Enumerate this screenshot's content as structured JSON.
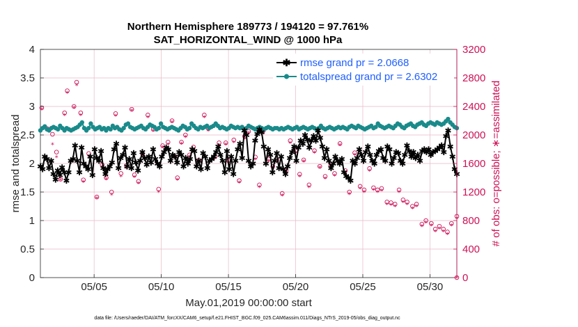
{
  "chart_data": {
    "type": "line",
    "title": "Northern Hemisphere 189773 / 194120 = 97.761%",
    "subtitle": "SAT_HORIZONTAL_WIND @ 1000 hPa",
    "xlabel": "May.01,2019 00:00:00 start",
    "ylabel_left": "rmse and totalspread",
    "ylabel_right": "# of obs: o=possible; ∗=assimilated",
    "footnote": "data file: /Users/raeder/DAI/ATM_forcXX/CAM6_setup/f.e21.FHIST_BGC.f09_025.CAM6assim.011/Diags_NTrS_2019-05/obs_diag_output.nc",
    "x_ticks": [
      "05/05",
      "05/10",
      "05/15",
      "05/20",
      "05/25",
      "05/30"
    ],
    "x_tick_values": [
      5,
      10,
      15,
      20,
      25,
      30
    ],
    "xlim": [
      1,
      32
    ],
    "ylim_left": [
      0,
      4
    ],
    "y_ticks_left": [
      "0",
      "0.5",
      "1",
      "1.5",
      "2",
      "2.5",
      "3",
      "3.5",
      "4"
    ],
    "ylim_right": [
      0,
      3200
    ],
    "y_ticks_right": [
      "0",
      "400",
      "800",
      "1200",
      "1600",
      "2000",
      "2400",
      "2800",
      "3200"
    ],
    "grid": true,
    "legend_position": "top-right",
    "colors": {
      "rmse": "#000000",
      "totalspread": "#1a8a8a",
      "obs": "#cc1155",
      "legend_text": "#1f5fff",
      "grid": "#e6b8c6"
    },
    "series": [
      {
        "name": "rmse grand pr = 2.0668",
        "axis": "left",
        "values": [
          1.95,
          1.9,
          2.12,
          2.08,
          1.92,
          2.05,
          1.82,
          1.72,
          1.88,
          1.8,
          1.93,
          1.85,
          1.7,
          1.85,
          2.05,
          2.08,
          2.32,
          2.05,
          1.85,
          2.28,
          2.0,
          1.95,
          1.9,
          2.12,
          1.8,
          2.25,
          2.1,
          2.05,
          2.22,
          1.92,
          1.82,
          1.9,
          1.95,
          2.02,
          2.25,
          2.35,
          1.92,
          2.1,
          2.15,
          2.28,
          1.95,
          2.08,
          1.92,
          2.18,
          2.02,
          1.88,
          2.05,
          2.2,
          2.1,
          1.98,
          2.12,
          2.02,
          2.25,
          2.08,
          2.0,
          1.95,
          2.12,
          2.2,
          2.28,
          2.25,
          2.05,
          2.15,
          2.12,
          2.02,
          2.2,
          2.15,
          1.95,
          2.1,
          2.0,
          2.08,
          2.25,
          2.22,
          1.95,
          2.05,
          1.9,
          2.18,
          2.12,
          1.92,
          2.05,
          2.08,
          2.12,
          2.2,
          2.3,
          2.15,
          2.05,
          1.85,
          2.22,
          1.9,
          2.12,
          1.82,
          2.05,
          2.25,
          2.35,
          2.1,
          2.58,
          2.5,
          2.05,
          1.95,
          2.0,
          2.4,
          2.52,
          2.6,
          2.55,
          2.3,
          2.0,
          2.25,
          2.15,
          1.85,
          2.05,
          2.18,
          1.92,
          2.12,
          1.9,
          1.82,
          1.95,
          2.1,
          2.2,
          2.3,
          2.05,
          2.28,
          2.4,
          2.35,
          2.5,
          2.42,
          2.28,
          2.4,
          2.48,
          2.4,
          2.58,
          2.45,
          2.3,
          2.1,
          2.25,
          2.05,
          1.92,
          2.0,
          2.12,
          2.05,
          2.0,
          2.08,
          1.85,
          1.78,
          1.75,
          1.7,
          2.05,
          2.0,
          2.1,
          2.25,
          2.15,
          2.05,
          2.2,
          2.3,
          2.15,
          2.05,
          2.0,
          2.15,
          2.22,
          2.25,
          2.1,
          2.05,
          2.3,
          2.25,
          2.0,
          2.1,
          2.2,
          2.18,
          2.05,
          2.0,
          2.15,
          2.32,
          2.22,
          2.12,
          2.2,
          2.1,
          2.15,
          2.05,
          2.22,
          2.25,
          2.2,
          2.25,
          2.15,
          2.2,
          2.22,
          2.25,
          2.28,
          2.32,
          2.2,
          2.48,
          2.58,
          2.3,
          2.12,
          1.9,
          1.82
        ]
      },
      {
        "name": "totalspread grand pr = 2.6302",
        "axis": "left",
        "values": [
          2.58,
          2.62,
          2.65,
          2.6,
          2.58,
          2.62,
          2.64,
          2.62,
          2.6,
          2.66,
          2.62,
          2.58,
          2.62,
          2.6,
          2.58,
          2.6,
          2.62,
          2.64,
          2.68,
          2.72,
          2.62,
          2.58,
          2.62,
          2.7,
          2.64,
          2.6,
          2.62,
          2.64,
          2.6,
          2.62,
          2.58,
          2.62,
          2.6,
          2.66,
          2.62,
          2.64,
          2.6,
          2.58,
          2.62,
          2.68,
          2.7,
          2.64,
          2.62,
          2.6,
          2.62,
          2.64,
          2.66,
          2.62,
          2.6,
          2.64,
          2.68,
          2.66,
          2.64,
          2.6,
          2.62,
          2.7,
          2.64,
          2.62,
          2.6,
          2.62,
          2.64,
          2.62,
          2.6,
          2.58,
          2.62,
          2.66,
          2.64,
          2.6,
          2.62,
          2.7,
          2.66,
          2.62,
          2.6,
          2.64,
          2.62,
          2.64,
          2.66,
          2.62,
          2.64,
          2.66,
          2.7,
          2.66,
          2.62,
          2.64,
          2.62,
          2.6,
          2.62,
          2.66,
          2.64,
          2.62,
          2.64,
          2.62,
          2.64,
          2.6,
          2.62,
          2.66,
          2.64,
          2.62,
          2.6,
          2.62,
          2.64,
          2.62,
          2.6,
          2.62,
          2.64,
          2.62,
          2.6,
          2.62,
          2.62,
          2.6,
          2.62,
          2.6,
          2.62,
          2.64,
          2.62,
          2.6,
          2.62,
          2.64,
          2.6,
          2.62,
          2.64,
          2.62,
          2.6,
          2.62,
          2.64,
          2.62,
          2.6,
          2.62,
          2.66,
          2.62,
          2.6,
          2.62,
          2.64,
          2.62,
          2.6,
          2.62,
          2.64,
          2.62,
          2.64,
          2.62,
          2.6,
          2.64,
          2.66,
          2.64,
          2.62,
          2.66,
          2.64,
          2.62,
          2.6,
          2.62,
          2.64,
          2.66,
          2.62,
          2.64,
          2.7,
          2.66,
          2.64,
          2.62,
          2.64,
          2.66,
          2.64,
          2.62,
          2.66,
          2.7,
          2.68,
          2.64,
          2.62,
          2.66,
          2.68,
          2.7,
          2.66,
          2.64,
          2.68,
          2.7,
          2.72,
          2.68,
          2.66,
          2.7,
          2.72,
          2.7,
          2.68,
          2.72,
          2.7,
          2.68,
          2.7,
          2.74,
          2.78,
          2.72,
          2.68,
          2.64,
          2.62
        ]
      }
    ],
    "obs_possible": {
      "axis": "right",
      "marker": "o",
      "points": [
        [
          1.1,
          2380
        ],
        [
          1.5,
          2090
        ],
        [
          1.9,
          2010
        ],
        [
          2.2,
          1760
        ],
        [
          2.5,
          1380
        ],
        [
          2.8,
          2310
        ],
        [
          3.0,
          2620
        ],
        [
          3.5,
          2400
        ],
        [
          3.7,
          2740
        ],
        [
          4.0,
          2310
        ],
        [
          4.2,
          1370
        ],
        [
          4.6,
          1740
        ],
        [
          5.2,
          1130
        ],
        [
          5.6,
          1580
        ],
        [
          5.9,
          1400
        ],
        [
          6.3,
          1200
        ],
        [
          6.6,
          2300
        ],
        [
          7.0,
          1460
        ],
        [
          7.4,
          1570
        ],
        [
          7.8,
          2360
        ],
        [
          8.0,
          1440
        ],
        [
          8.3,
          1350
        ],
        [
          8.6,
          1740
        ],
        [
          9.0,
          2280
        ],
        [
          9.4,
          2080
        ],
        [
          9.8,
          1240
        ],
        [
          10.1,
          1850
        ],
        [
          10.5,
          1900
        ],
        [
          10.8,
          2200
        ],
        [
          11.0,
          1700
        ],
        [
          11.2,
          1400
        ],
        [
          11.5,
          1900
        ],
        [
          11.8,
          2000
        ],
        [
          12.1,
          1720
        ],
        [
          12.4,
          1830
        ],
        [
          12.8,
          1650
        ],
        [
          13.2,
          2280
        ],
        [
          13.5,
          2090
        ],
        [
          14.0,
          1700
        ],
        [
          14.3,
          1890
        ],
        [
          14.8,
          1890
        ],
        [
          15.0,
          1640
        ],
        [
          15.4,
          1930
        ],
        [
          15.8,
          1360
        ],
        [
          16.2,
          1980
        ],
        [
          16.5,
          2050
        ],
        [
          17.0,
          1690
        ],
        [
          17.3,
          1300
        ],
        [
          17.6,
          2060
        ],
        [
          18.0,
          1660
        ],
        [
          18.3,
          1560
        ],
        [
          18.6,
          1650
        ],
        [
          19.0,
          1180
        ],
        [
          19.3,
          1500
        ],
        [
          19.6,
          1920
        ],
        [
          20.0,
          1780
        ],
        [
          20.3,
          1450
        ],
        [
          20.6,
          1650
        ],
        [
          21.0,
          1300
        ],
        [
          21.4,
          1780
        ],
        [
          21.8,
          1560
        ],
        [
          22.2,
          1420
        ],
        [
          22.6,
          1570
        ],
        [
          22.9,
          1460
        ],
        [
          23.3,
          1880
        ],
        [
          23.7,
          1500
        ],
        [
          24.0,
          1200
        ],
        [
          24.4,
          1750
        ],
        [
          24.8,
          1280
        ],
        [
          25.1,
          1230
        ],
        [
          25.5,
          1530
        ],
        [
          25.8,
          1260
        ],
        [
          26.1,
          1230
        ],
        [
          26.4,
          1250
        ],
        [
          26.8,
          1060
        ],
        [
          27.1,
          1050
        ],
        [
          27.4,
          1030
        ],
        [
          27.7,
          1230
        ],
        [
          28.0,
          1090
        ],
        [
          28.3,
          1060
        ],
        [
          28.7,
          1000
        ],
        [
          29.0,
          1030
        ],
        [
          29.4,
          750
        ],
        [
          29.7,
          800
        ],
        [
          30.1,
          760
        ],
        [
          30.4,
          680
        ],
        [
          30.7,
          720
        ],
        [
          31.0,
          680
        ],
        [
          31.3,
          640
        ],
        [
          31.6,
          760
        ],
        [
          32.0,
          860
        ],
        [
          32.0,
          0
        ]
      ]
    },
    "obs_assimilated": {
      "axis": "right",
      "marker": "*",
      "points": [
        [
          1.1,
          2360
        ],
        [
          1.5,
          2060
        ],
        [
          1.9,
          1870
        ],
        [
          2.2,
          1690
        ],
        [
          2.5,
          1370
        ],
        [
          2.8,
          2280
        ],
        [
          3.0,
          2590
        ],
        [
          3.5,
          2380
        ],
        [
          3.7,
          2700
        ],
        [
          4.0,
          2280
        ],
        [
          4.2,
          1340
        ],
        [
          4.6,
          1700
        ],
        [
          5.2,
          1110
        ],
        [
          5.6,
          1550
        ],
        [
          5.9,
          1380
        ],
        [
          6.3,
          1160
        ],
        [
          6.6,
          2270
        ],
        [
          7.0,
          1420
        ],
        [
          7.4,
          1530
        ],
        [
          7.8,
          2340
        ],
        [
          8.0,
          1410
        ],
        [
          8.3,
          1320
        ],
        [
          8.6,
          1710
        ],
        [
          9.0,
          2250
        ],
        [
          9.4,
          2060
        ],
        [
          9.8,
          1200
        ],
        [
          10.1,
          1830
        ],
        [
          10.5,
          1870
        ],
        [
          10.8,
          2180
        ],
        [
          11.0,
          1680
        ],
        [
          11.2,
          1370
        ],
        [
          11.5,
          1880
        ],
        [
          11.8,
          1970
        ],
        [
          12.1,
          1700
        ],
        [
          12.4,
          1800
        ],
        [
          12.8,
          1620
        ],
        [
          13.2,
          2250
        ],
        [
          13.5,
          2060
        ],
        [
          14.0,
          1670
        ],
        [
          14.3,
          1860
        ],
        [
          14.8,
          1870
        ],
        [
          15.0,
          1620
        ],
        [
          15.4,
          1900
        ],
        [
          15.8,
          1330
        ],
        [
          16.2,
          1950
        ],
        [
          16.5,
          2030
        ],
        [
          17.0,
          1660
        ],
        [
          17.3,
          1270
        ],
        [
          17.6,
          2030
        ],
        [
          18.0,
          1640
        ],
        [
          18.3,
          1530
        ],
        [
          18.6,
          1620
        ],
        [
          19.0,
          1150
        ],
        [
          19.3,
          1470
        ],
        [
          19.6,
          1890
        ],
        [
          20.0,
          1750
        ],
        [
          20.3,
          1420
        ],
        [
          20.6,
          1630
        ],
        [
          21.0,
          1270
        ],
        [
          21.4,
          1750
        ],
        [
          21.8,
          1540
        ],
        [
          22.2,
          1390
        ],
        [
          22.6,
          1540
        ],
        [
          22.9,
          1430
        ],
        [
          23.3,
          1860
        ],
        [
          23.7,
          1470
        ],
        [
          24.0,
          1170
        ],
        [
          24.4,
          1720
        ],
        [
          24.8,
          1250
        ],
        [
          25.1,
          1200
        ],
        [
          25.5,
          1500
        ],
        [
          25.8,
          1230
        ],
        [
          26.1,
          1200
        ],
        [
          26.4,
          1220
        ],
        [
          26.8,
          1030
        ],
        [
          27.1,
          1020
        ],
        [
          27.4,
          1000
        ],
        [
          27.7,
          1200
        ],
        [
          28.0,
          1060
        ],
        [
          28.3,
          1030
        ],
        [
          28.7,
          970
        ],
        [
          29.0,
          1000
        ],
        [
          29.4,
          720
        ],
        [
          29.7,
          770
        ],
        [
          30.1,
          730
        ],
        [
          30.4,
          650
        ],
        [
          30.7,
          690
        ],
        [
          31.0,
          650
        ],
        [
          31.3,
          610
        ],
        [
          31.6,
          730
        ],
        [
          32.0,
          830
        ],
        [
          32.0,
          0
        ]
      ]
    }
  }
}
